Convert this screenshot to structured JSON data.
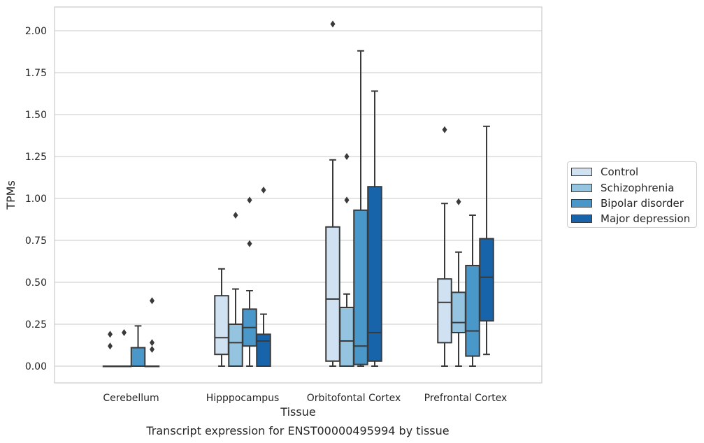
{
  "chart_data": {
    "type": "box",
    "ylabel": "TPMs",
    "xlabel": "Tissue",
    "caption": "Transcript expression for ENST00000495994 by tissue",
    "ylim": [
      -0.1,
      2.15
    ],
    "yticks": [
      "0.00",
      "0.25",
      "0.50",
      "0.75",
      "1.00",
      "1.25",
      "1.50",
      "1.75",
      "2.00"
    ],
    "grid": true,
    "legend_position": "right",
    "categories": [
      "Cerebellum",
      "Hipppocampus",
      "Orbitofontal Cortex",
      "Prefrontal Cortex"
    ],
    "series": [
      {
        "name": "Control",
        "color": "#d0e1f2",
        "boxes": [
          {
            "min": 0.0,
            "q1": 0.0,
            "median": 0.0,
            "q3": 0.0,
            "max": 0.0,
            "outliers": [
              0.19,
              0.12
            ]
          },
          {
            "min": 0.0,
            "q1": 0.07,
            "median": 0.17,
            "q3": 0.42,
            "max": 0.58,
            "outliers": []
          },
          {
            "min": 0.0,
            "q1": 0.03,
            "median": 0.4,
            "q3": 0.83,
            "max": 1.23,
            "outliers": [
              2.04
            ]
          },
          {
            "min": 0.0,
            "q1": 0.14,
            "median": 0.38,
            "q3": 0.52,
            "max": 0.97,
            "outliers": [
              1.41
            ]
          }
        ]
      },
      {
        "name": "Schizophrenia",
        "color": "#94c4df",
        "boxes": [
          {
            "min": 0.0,
            "q1": 0.0,
            "median": 0.0,
            "q3": 0.0,
            "max": 0.0,
            "outliers": [
              0.2
            ]
          },
          {
            "min": 0.0,
            "q1": 0.0,
            "median": 0.14,
            "q3": 0.25,
            "max": 0.46,
            "outliers": [
              0.9
            ]
          },
          {
            "min": 0.0,
            "q1": 0.0,
            "median": 0.15,
            "q3": 0.35,
            "max": 0.43,
            "outliers": [
              1.25,
              0.99
            ]
          },
          {
            "min": 0.0,
            "q1": 0.2,
            "median": 0.26,
            "q3": 0.44,
            "max": 0.68,
            "outliers": [
              0.98
            ]
          }
        ]
      },
      {
        "name": "Bipolar disorder",
        "color": "#4a98c9",
        "boxes": [
          {
            "min": 0.0,
            "q1": 0.0,
            "median": 0.0,
            "q3": 0.11,
            "max": 0.24,
            "outliers": []
          },
          {
            "min": 0.0,
            "q1": 0.12,
            "median": 0.23,
            "q3": 0.34,
            "max": 0.45,
            "outliers": [
              0.99,
              0.73
            ]
          },
          {
            "min": 0.0,
            "q1": 0.01,
            "median": 0.12,
            "q3": 0.93,
            "max": 1.88,
            "outliers": []
          },
          {
            "min": 0.0,
            "q1": 0.06,
            "median": 0.21,
            "q3": 0.6,
            "max": 0.9,
            "outliers": []
          }
        ]
      },
      {
        "name": "Major depression",
        "color": "#1764ab",
        "boxes": [
          {
            "min": 0.0,
            "q1": 0.0,
            "median": 0.0,
            "q3": 0.0,
            "max": 0.0,
            "outliers": [
              0.39,
              0.14,
              0.1
            ]
          },
          {
            "min": 0.0,
            "q1": 0.0,
            "median": 0.15,
            "q3": 0.19,
            "max": 0.31,
            "outliers": [
              1.05
            ]
          },
          {
            "min": 0.0,
            "q1": 0.03,
            "median": 0.2,
            "q3": 1.07,
            "max": 1.64,
            "outliers": []
          },
          {
            "min": 0.07,
            "q1": 0.27,
            "median": 0.53,
            "q3": 0.76,
            "max": 1.43,
            "outliers": []
          }
        ]
      }
    ]
  }
}
